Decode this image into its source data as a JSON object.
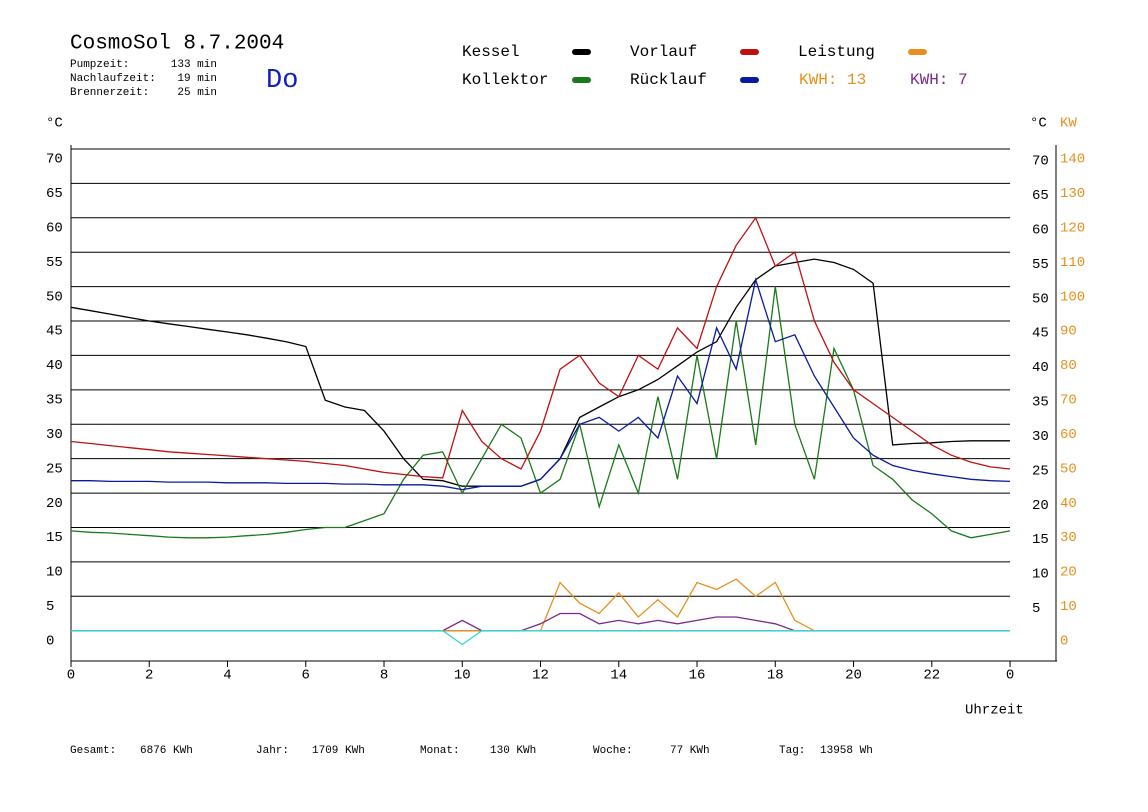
{
  "header": {
    "title": "CosmoSol 8.7.2004",
    "day": "Do",
    "stats": [
      [
        "Pumpzeit:",
        "133 min"
      ],
      [
        "Nachlaufzeit:",
        "19 min"
      ],
      [
        "Brennerzeit:",
        "25 min"
      ]
    ]
  },
  "kwh_labels": [
    {
      "text": "KWH: 13",
      "color": "#e8901e"
    },
    {
      "text": "KWH: 7",
      "color": "#7a2a8a"
    }
  ],
  "footer": [
    [
      "Gesamt:",
      "6876 KWh"
    ],
    [
      "Jahr:",
      "1709 KWh"
    ],
    [
      "Monat:",
      "130 KWh"
    ],
    [
      "Woche:",
      "77 KWh"
    ],
    [
      "Tag:",
      "13958 Wh"
    ]
  ],
  "chart_data": {
    "type": "line",
    "y_label": "°C",
    "y2_label": "KW",
    "x_label": "Uhrzeit",
    "x": [
      0,
      0.5,
      1,
      1.5,
      2,
      2.5,
      3,
      3.5,
      4,
      4.5,
      5,
      5.5,
      6,
      6.5,
      7,
      7.5,
      8,
      8.5,
      9,
      9.5,
      10,
      10.5,
      11,
      11.5,
      12,
      12.5,
      13,
      13.5,
      14,
      14.5,
      15,
      15.5,
      16,
      16.5,
      17,
      17.5,
      18,
      18.5,
      19,
      19.5,
      20,
      20.5,
      21,
      21.5,
      22,
      22.5,
      23,
      23.5,
      24
    ],
    "xlim": [
      0,
      25.2
    ],
    "xticks": [
      0,
      2,
      4,
      6,
      8,
      10,
      12,
      14,
      16,
      18,
      20,
      22,
      {
        "value": 24,
        "label": "0"
      }
    ],
    "ylim": [
      -4.4,
      72
    ],
    "yticks": [
      0,
      5,
      10,
      15,
      20,
      25,
      30,
      35,
      40,
      45,
      50,
      55,
      60,
      65,
      70
    ],
    "y2lim": [
      -8.8,
      144
    ],
    "y2ticks": [
      0,
      10,
      20,
      30,
      40,
      50,
      60,
      70,
      80,
      90,
      100,
      110,
      120,
      130,
      140
    ],
    "grid": true,
    "series": [
      {
        "name": "Kessel",
        "color": "#000000",
        "values": [
          47,
          46.5,
          46,
          45.5,
          45,
          44.6,
          44.2,
          43.8,
          43.4,
          43,
          42.5,
          42,
          41.3,
          33.5,
          32.5,
          32,
          29,
          25,
          22,
          21.8,
          21,
          21,
          21,
          21,
          22,
          25,
          31,
          32.5,
          34,
          35,
          36.5,
          38.5,
          40.5,
          42,
          47,
          51,
          53,
          53.5,
          54,
          53.5,
          52.5,
          50.5,
          27,
          27.2,
          27.3,
          27.5,
          27.6,
          27.6,
          27.6
        ]
      },
      {
        "name": "Kollektor",
        "color": "#1a7a1a",
        "values": [
          14.5,
          14.3,
          14.2,
          14,
          13.8,
          13.6,
          13.5,
          13.5,
          13.6,
          13.8,
          14,
          14.3,
          14.7,
          15,
          15,
          16,
          17,
          22,
          25.5,
          26,
          20,
          25,
          30,
          28,
          20,
          22,
          30,
          18,
          27,
          20,
          34,
          22,
          40,
          25,
          45,
          27,
          50,
          30,
          22,
          41,
          35,
          24,
          22,
          19,
          17,
          14.5,
          13.5,
          14,
          14.5
        ]
      },
      {
        "name": "Vorlauf",
        "color": "#c01010",
        "values": [
          27.5,
          27.2,
          26.9,
          26.6,
          26.3,
          26,
          25.8,
          25.6,
          25.4,
          25.2,
          25,
          24.8,
          24.6,
          24.3,
          24,
          23.5,
          23,
          22.7,
          22.4,
          22.2,
          32,
          27.5,
          25,
          23.5,
          29,
          38,
          40,
          36,
          34,
          40,
          38,
          44,
          41,
          50,
          56,
          60,
          53,
          55,
          45,
          39,
          35,
          33,
          31,
          29,
          27,
          25.5,
          24.5,
          23.8,
          23.5
        ]
      },
      {
        "name": "Rücklauf",
        "color": "#0a1aa0",
        "values": [
          21.8,
          21.8,
          21.7,
          21.7,
          21.7,
          21.6,
          21.6,
          21.6,
          21.5,
          21.5,
          21.5,
          21.4,
          21.4,
          21.4,
          21.3,
          21.3,
          21.2,
          21.2,
          21.2,
          21,
          20.5,
          21,
          21,
          21,
          22,
          25,
          30,
          31,
          29,
          31,
          28,
          37,
          33,
          44,
          38,
          51,
          42,
          43,
          37,
          32.5,
          28,
          25.5,
          24,
          23.3,
          22.8,
          22.4,
          22,
          21.8,
          21.7
        ]
      },
      {
        "name": "Leistung",
        "color": "#e8901e",
        "axis": "y2",
        "values": [
          0,
          0,
          0,
          0,
          0,
          0,
          0,
          0,
          0,
          0,
          0,
          0,
          0,
          0,
          0,
          0,
          0,
          0,
          0,
          0,
          0,
          0,
          0,
          0,
          0,
          14,
          8,
          5,
          11,
          4,
          9,
          4,
          14,
          12,
          15,
          10,
          14,
          3,
          0,
          0,
          0,
          0,
          0,
          0,
          0,
          0,
          0,
          0,
          0
        ]
      },
      {
        "color": "#7a2a8a",
        "axis": "y2",
        "values": [
          0,
          0,
          0,
          0,
          0,
          0,
          0,
          0,
          0,
          0,
          0,
          0,
          0,
          0,
          0,
          0,
          0,
          0,
          0,
          0,
          3,
          0,
          0,
          0,
          2,
          5,
          5,
          2,
          3,
          2,
          3,
          2,
          3,
          4,
          4,
          3,
          2,
          0,
          0,
          0,
          0,
          0,
          0,
          0,
          0,
          0,
          0,
          0,
          0
        ]
      },
      {
        "color": "#30d8d8",
        "values": [
          0,
          0,
          0,
          0,
          0,
          0,
          0,
          0,
          0,
          0,
          0,
          0,
          0,
          0,
          0,
          0,
          0,
          0,
          0,
          0,
          -2,
          0,
          0,
          0,
          0,
          0,
          0,
          0,
          0,
          0,
          0,
          0,
          0,
          0,
          0,
          0,
          0,
          0,
          0,
          0,
          0,
          0,
          0,
          0,
          0,
          0,
          0,
          0,
          0
        ]
      }
    ]
  }
}
